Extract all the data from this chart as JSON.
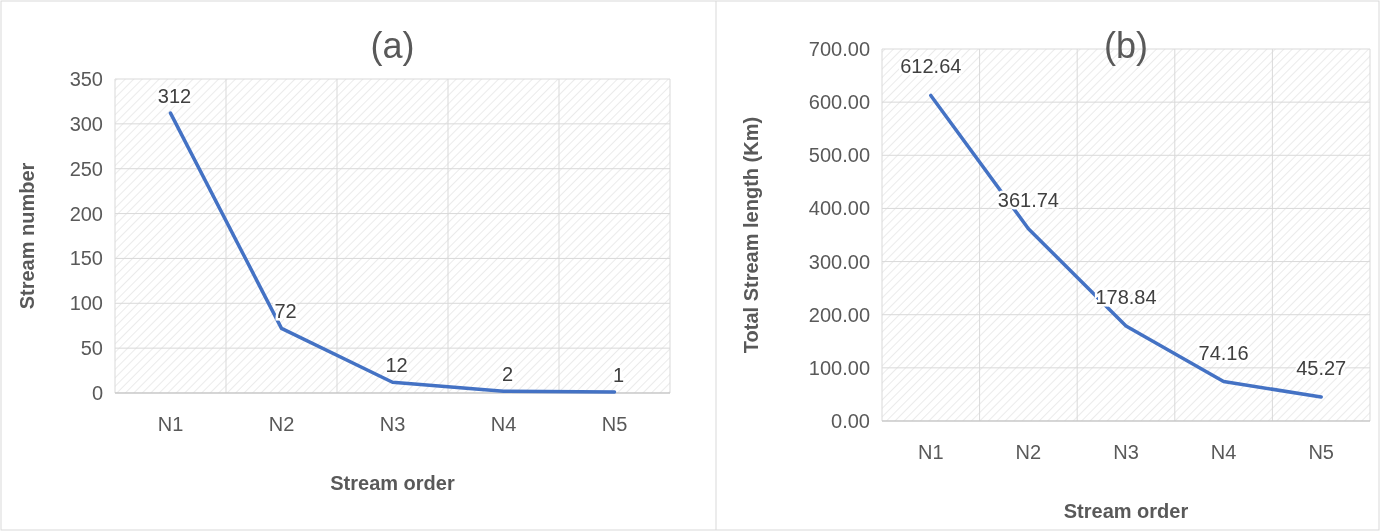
{
  "chart_data": [
    {
      "type": "line",
      "title": "(a)",
      "xlabel": "Stream order",
      "ylabel": "Stream number",
      "categories": [
        "N1",
        "N2",
        "N3",
        "N4",
        "N5"
      ],
      "series": [
        {
          "color": "#4472c4",
          "values": [
            312,
            72,
            12,
            2,
            1
          ]
        }
      ],
      "ylim": [
        0,
        350
      ],
      "yticks": [
        0,
        50,
        100,
        150,
        200,
        250,
        300,
        350
      ],
      "grid": true,
      "data_labels": true
    },
    {
      "type": "line",
      "title": "(b)",
      "xlabel": "Stream order",
      "ylabel": "Total Stream length (Km)",
      "categories": [
        "N1",
        "N2",
        "N3",
        "N4",
        "N5"
      ],
      "series": [
        {
          "color": "#4472c4",
          "values": [
            612.64,
            361.74,
            178.84,
            74.16,
            45.27
          ],
          "value_labels": [
            "612.64",
            "361.74",
            "178.84",
            "74.16",
            "45.27"
          ]
        }
      ],
      "ylim": [
        0,
        700
      ],
      "yticks": [
        {
          "value": 0,
          "label": "0.00"
        },
        {
          "value": 100,
          "label": "100.00"
        },
        {
          "value": 200,
          "label": "200.00"
        },
        {
          "value": 300,
          "label": "300.00"
        },
        {
          "value": 400,
          "label": "400.00"
        },
        {
          "value": 500,
          "label": "500.00"
        },
        {
          "value": 600,
          "label": "600.00"
        },
        {
          "value": 700,
          "label": "700.00"
        }
      ],
      "grid": true
    }
  ]
}
